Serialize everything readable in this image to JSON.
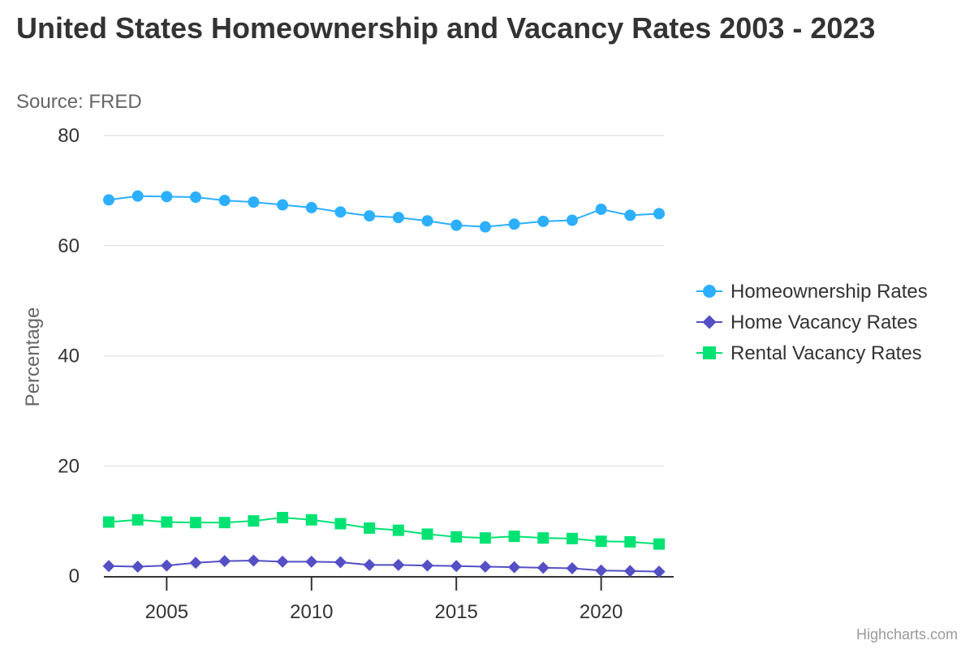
{
  "chart_data": {
    "type": "line",
    "title": "United States Homeownership and Vacancy Rates 2003 - 2023",
    "subtitle": "Source: FRED",
    "credits": "Highcharts.com",
    "ylabel": "Percentage",
    "xlabel": "",
    "xlim": [
      2003,
      2022
    ],
    "ylim": [
      0,
      80
    ],
    "x_ticks": [
      2005,
      2010,
      2015,
      2020
    ],
    "y_ticks": [
      0,
      20,
      40,
      60,
      80
    ],
    "grid": true,
    "legend_position": "right",
    "x": [
      2003,
      2004,
      2005,
      2006,
      2007,
      2008,
      2009,
      2010,
      2011,
      2012,
      2013,
      2014,
      2015,
      2016,
      2017,
      2018,
      2019,
      2020,
      2021,
      2022
    ],
    "series": [
      {
        "name": "Homeownership Rates",
        "color": "#2caffe",
        "marker": "circle",
        "values": [
          68.3,
          69.0,
          68.9,
          68.8,
          68.2,
          67.9,
          67.4,
          66.9,
          66.1,
          65.4,
          65.1,
          64.5,
          63.7,
          63.4,
          63.9,
          64.4,
          64.6,
          66.6,
          65.5,
          65.8
        ]
      },
      {
        "name": "Home Vacancy Rates",
        "color": "#544fc5",
        "marker": "diamond",
        "values": [
          1.8,
          1.7,
          1.9,
          2.4,
          2.7,
          2.8,
          2.6,
          2.6,
          2.5,
          2.0,
          2.0,
          1.9,
          1.8,
          1.7,
          1.6,
          1.5,
          1.4,
          1.0,
          0.9,
          0.8
        ]
      },
      {
        "name": "Rental Vacancy Rates",
        "color": "#00e272",
        "marker": "square",
        "values": [
          9.8,
          10.2,
          9.8,
          9.7,
          9.7,
          10.0,
          10.6,
          10.2,
          9.5,
          8.7,
          8.3,
          7.6,
          7.1,
          6.9,
          7.2,
          6.9,
          6.8,
          6.3,
          6.2,
          5.8
        ]
      }
    ]
  }
}
